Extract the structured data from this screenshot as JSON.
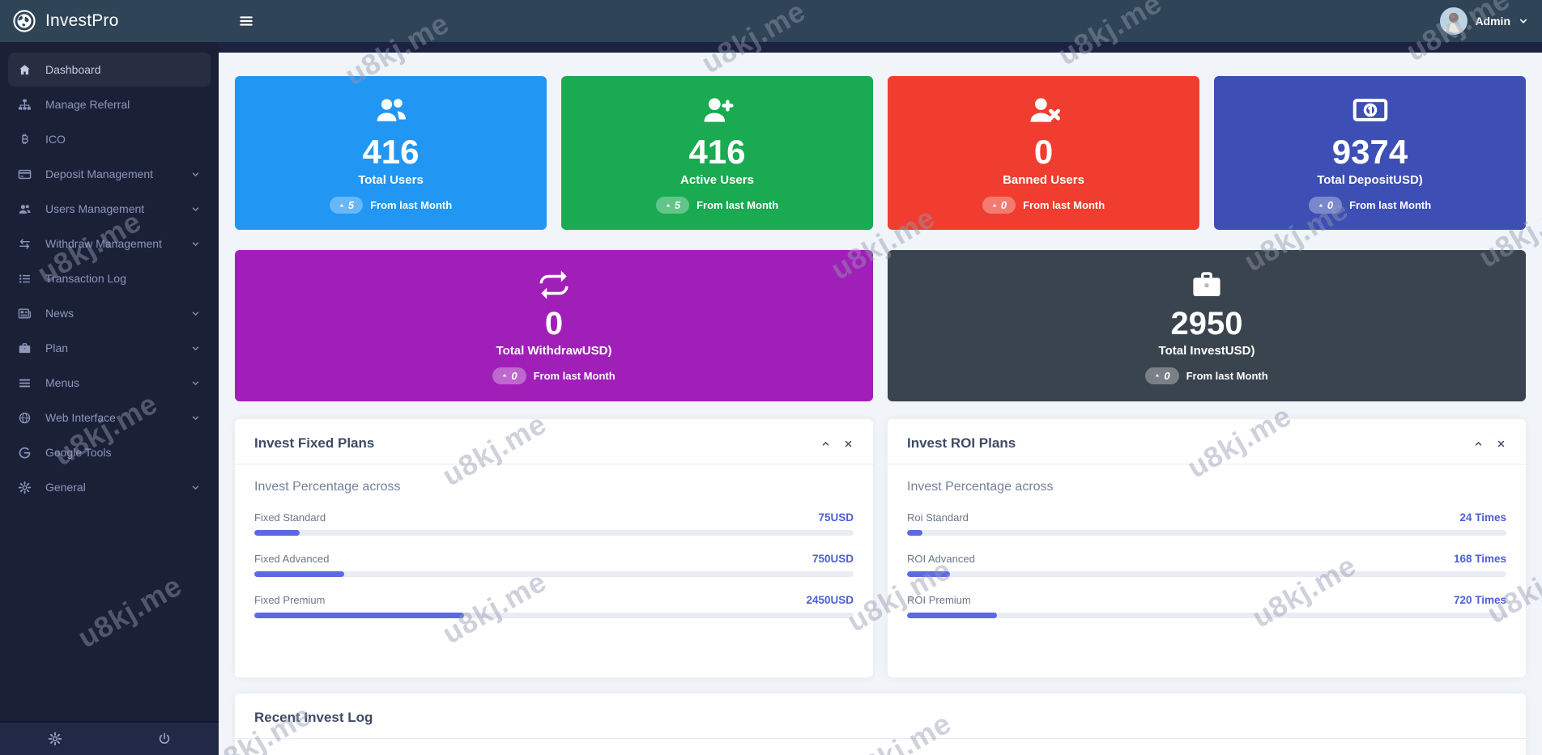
{
  "app": {
    "name": "InvestPro",
    "watermark": "u8kj.me"
  },
  "topbar": {
    "admin_label": "Admin"
  },
  "sidebar": {
    "items": [
      {
        "label": "Dashboard",
        "icon": "home-icon",
        "active": true,
        "chevron": false
      },
      {
        "label": "Manage Referral",
        "icon": "sitemap-icon",
        "active": false,
        "chevron": false
      },
      {
        "label": "ICO",
        "icon": "bitcoin-icon",
        "active": false,
        "chevron": false
      },
      {
        "label": "Deposit Management",
        "icon": "credit-card-icon",
        "active": false,
        "chevron": true
      },
      {
        "label": "Users Management",
        "icon": "users-icon",
        "active": false,
        "chevron": true
      },
      {
        "label": "Withdraw Management",
        "icon": "exchange-icon",
        "active": false,
        "chevron": true
      },
      {
        "label": "Transaction Log",
        "icon": "list-icon",
        "active": false,
        "chevron": false
      },
      {
        "label": "News",
        "icon": "newspaper-icon",
        "active": false,
        "chevron": true
      },
      {
        "label": "Plan",
        "icon": "briefcase-icon",
        "active": false,
        "chevron": true
      },
      {
        "label": "Menus",
        "icon": "bars-icon",
        "active": false,
        "chevron": true
      },
      {
        "label": "Web Interface",
        "icon": "globe-icon",
        "active": false,
        "chevron": true
      },
      {
        "label": "Google Tools",
        "icon": "google-icon",
        "active": false,
        "chevron": false
      },
      {
        "label": "General",
        "icon": "gear-icon",
        "active": false,
        "chevron": true
      }
    ]
  },
  "stat_cards": [
    {
      "value": "416",
      "label": "Total Users",
      "badge": "5",
      "note": "From last Month",
      "color": "#2196f3",
      "icon": "users-icon"
    },
    {
      "value": "416",
      "label": "Active Users",
      "badge": "5",
      "note": "From last Month",
      "color": "#19aa52",
      "icon": "user-plus-icon"
    },
    {
      "value": "0",
      "label": "Banned Users",
      "badge": "0",
      "note": "From last Month",
      "color": "#f03d2f",
      "icon": "user-x-icon"
    },
    {
      "value": "9374",
      "label": "Total DepositUSD)",
      "badge": "0",
      "note": "From last Month",
      "color": "#3d4eb5",
      "icon": "money-bill-icon"
    }
  ],
  "wide_cards": [
    {
      "value": "0",
      "label": "Total WithdrawUSD)",
      "badge": "0",
      "note": "From last Month",
      "color": "#a01fb8",
      "icon": "repeat-icon"
    },
    {
      "value": "2950",
      "label": "Total InvestUSD)",
      "badge": "0",
      "note": "From last Month",
      "color": "#3a444e",
      "icon": "briefcase-icon"
    }
  ],
  "panels": {
    "fixed": {
      "title": "Invest Fixed Plans",
      "subtitle": "Invest Percentage across",
      "rows": [
        {
          "label": "Fixed Standard",
          "value": "75USD",
          "percent": 7.5
        },
        {
          "label": "Fixed Advanced",
          "value": "750USD",
          "percent": 15
        },
        {
          "label": "Fixed Premium",
          "value": "2450USD",
          "percent": 35
        }
      ]
    },
    "roi": {
      "title": "Invest ROI Plans",
      "subtitle": "Invest Percentage across",
      "rows": [
        {
          "label": "Roi Standard",
          "value": "24 Times",
          "percent": 2.5
        },
        {
          "label": "ROI Advanced",
          "value": "168 Times",
          "percent": 7.2
        },
        {
          "label": "ROI Premium",
          "value": "720 Times",
          "percent": 15
        }
      ]
    },
    "recent": {
      "title": "Recent Invest Log"
    }
  }
}
